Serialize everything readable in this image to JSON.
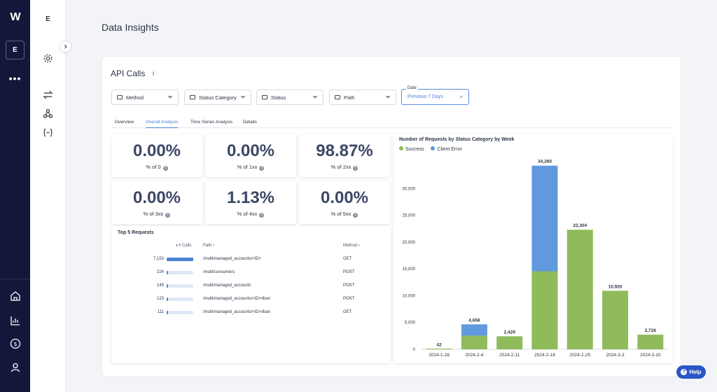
{
  "rail": {
    "logo": "W",
    "workspace": "E",
    "more": "•••"
  },
  "side2": {
    "workspace_letter": "E"
  },
  "page": {
    "title": "Data Insights"
  },
  "card": {
    "title": "API Calls",
    "filters": [
      {
        "label": "Method"
      },
      {
        "label": "Status Category"
      },
      {
        "label": "Status"
      },
      {
        "label": "Path"
      }
    ],
    "date_filter": {
      "label": "Date",
      "value": "Previous 7 Days",
      "clear": "×"
    },
    "tabs": [
      "Overview",
      "Overall Analysis",
      "Time Series Analysis",
      "Details"
    ],
    "active_tab": "Overall Analysis"
  },
  "stats": [
    {
      "value": "0.00%",
      "label": "% of 0"
    },
    {
      "value": "0.00%",
      "label": "% of 1xx"
    },
    {
      "value": "98.87%",
      "label": "% of 2xx"
    },
    {
      "value": "0.00%",
      "label": "% of 3xx"
    },
    {
      "value": "1.13%",
      "label": "% of 4xx"
    },
    {
      "value": "0.00%",
      "label": "% of 5xx"
    }
  ],
  "top5": {
    "title": "Top 5 Requests",
    "columns": {
      "calls": "# Calls",
      "path": "Path",
      "method": "Method"
    },
    "rows": [
      {
        "calls": "7,153",
        "share": 1.0,
        "path": "/multi/managed_accounts/<ID>",
        "method": "GET"
      },
      {
        "calls": "224",
        "share": 0.031,
        "path": "/multi/consumers",
        "method": "POST"
      },
      {
        "calls": "149",
        "share": 0.021,
        "path": "/multi/managed_accounts",
        "method": "POST"
      },
      {
        "calls": "123",
        "share": 0.017,
        "path": "/multi/managed_accounts/<ID>/iban",
        "method": "POST"
      },
      {
        "calls": "111",
        "share": 0.016,
        "path": "/multi/managed_accounts/<ID>/iban",
        "method": "GET"
      }
    ]
  },
  "chart_data": {
    "type": "bar",
    "stacked": true,
    "title": "Number of Requests by Status Category by Week",
    "categories": [
      "2024-1-28",
      "2024-2-4",
      "2024-2-11",
      "2024-2-18",
      "2024-2-25",
      "2024-3-3",
      "2024-3-10"
    ],
    "series": [
      {
        "name": "Success",
        "color": "#8fbb5a",
        "values": [
          42,
          2558,
          2429,
          14560,
          22304,
          10920,
          2726
        ]
      },
      {
        "name": "Client Error",
        "color": "#6099de",
        "values": [
          0,
          2100,
          0,
          19700,
          0,
          0,
          0
        ]
      }
    ],
    "totals": [
      "42",
      "4,658",
      "2,429",
      "34,260",
      "22,304",
      "10,920",
      "2,726"
    ],
    "ylim": [
      0,
      35000
    ],
    "yticks": [
      0,
      5000,
      10000,
      15000,
      20000,
      25000,
      30000
    ],
    "ytick_labels": [
      "0",
      "5,000",
      "10,000",
      "15,000",
      "20,000",
      "25,000",
      "30,000"
    ],
    "legend_position": "top-left",
    "grid": false
  },
  "help": {
    "label": "Help"
  }
}
